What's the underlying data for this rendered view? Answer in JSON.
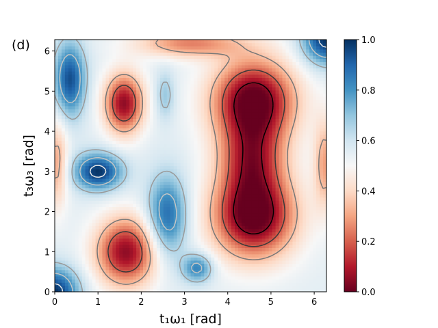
{
  "panel_label": "(d)",
  "chart_data": {
    "type": "heatmap",
    "title": "",
    "xlabel": "t₁ω₁ [rad]",
    "ylabel": "t₃ω₃ [rad]",
    "xlim": [
      0,
      6.283
    ],
    "ylim": [
      0,
      6.283
    ],
    "x_ticks": [
      "0",
      "1",
      "2",
      "3",
      "4",
      "5",
      "6"
    ],
    "y_ticks": [
      "0",
      "1",
      "2",
      "3",
      "4",
      "5",
      "6"
    ],
    "colorbar": {
      "colormap": "RdBu",
      "range": [
        0.0,
        1.0
      ],
      "ticks": [
        "0.0",
        "0.2",
        "0.4",
        "0.6",
        "0.8",
        "1.0"
      ]
    },
    "contour_levels": [
      0.05,
      0.2,
      0.35,
      0.65,
      0.8,
      0.95
    ],
    "contour_colors": [
      "#000000",
      "#3a3a3a",
      "#777777",
      "#9a9a9a",
      "#c4c4c4",
      "#e8e8e8"
    ],
    "colors": {
      "low": "#67001f",
      "mid": "#f7f7f7",
      "high": "#053061"
    },
    "features": [
      {
        "kind": "min",
        "x": 4.6,
        "y": 4.75,
        "value": 0.0
      },
      {
        "kind": "min",
        "x": 4.6,
        "y": 1.9,
        "value": 0.0
      },
      {
        "kind": "min",
        "x": 1.6,
        "y": 4.7,
        "value": 0.08
      },
      {
        "kind": "min",
        "x": 1.6,
        "y": 1.0,
        "value": 0.08
      },
      {
        "kind": "max",
        "x": 0.0,
        "y": 0.0,
        "value": 1.0
      },
      {
        "kind": "max",
        "x": 6.283,
        "y": 6.283,
        "value": 1.0
      },
      {
        "kind": "max",
        "x": 1.0,
        "y": 3.0,
        "value": 0.85
      },
      {
        "kind": "max",
        "x": 3.3,
        "y": 0.6,
        "value": 0.82
      }
    ]
  }
}
